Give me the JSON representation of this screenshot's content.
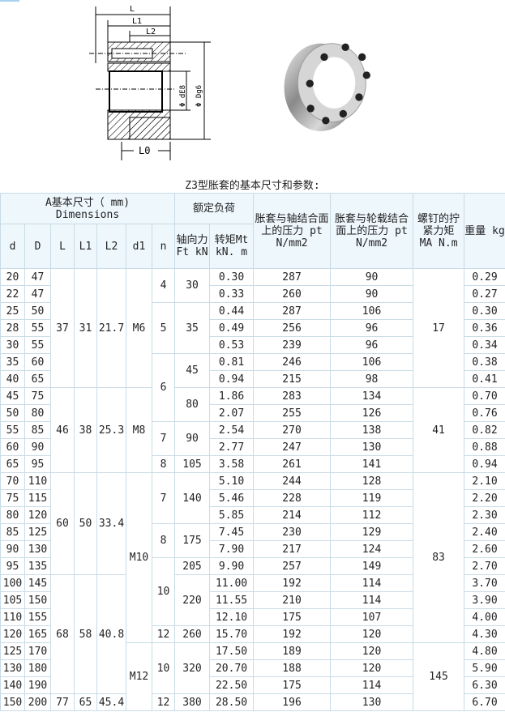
{
  "title": "Z3型胀套的基本尺寸和参数:",
  "drawing_labels": {
    "L": "L",
    "L1": "L1",
    "L2": "L2",
    "L0": "L0",
    "dE8": "Φ dE8",
    "Dg6": "Φ Dg6"
  },
  "header": {
    "group_dimensions": "A基本尺寸（ mm)",
    "group_dimensions_en": "Dimensions",
    "group_load": "额定负荷",
    "pt_shaft": "胀套与轴结合面上的压力 pt N/mm2",
    "pt_hub": "胀套与轮载结合面上的压力 pt N/mm2",
    "ma": "螺钉的拧紧力矩 MA N.m",
    "weight": "重量 kg",
    "d": "d",
    "D": "D",
    "L": "L",
    "L1": "L1",
    "L2": "L2",
    "d1": "d1",
    "n": "n",
    "ft": "轴向力Ft kN",
    "mt": "转矩Mt kN. m"
  },
  "rows": [
    {
      "d": "20",
      "D": "47",
      "mt": "0.30",
      "pt_shaft": "287",
      "pt_hub": "90",
      "kg": "0.29"
    },
    {
      "d": "22",
      "D": "47",
      "mt": "0.33",
      "pt_shaft": "260",
      "pt_hub": "90",
      "kg": "0.27"
    },
    {
      "d": "25",
      "D": "50",
      "mt": "0.44",
      "pt_shaft": "287",
      "pt_hub": "106",
      "kg": "0.30"
    },
    {
      "d": "28",
      "D": "55",
      "mt": "0.49",
      "pt_shaft": "256",
      "pt_hub": "96",
      "kg": "0.36"
    },
    {
      "d": "30",
      "D": "55",
      "mt": "0.53",
      "pt_shaft": "239",
      "pt_hub": "96",
      "kg": "0.34"
    },
    {
      "d": "35",
      "D": "60",
      "mt": "0.81",
      "pt_shaft": "246",
      "pt_hub": "106",
      "kg": "0.38"
    },
    {
      "d": "40",
      "D": "65",
      "mt": "0.94",
      "pt_shaft": "215",
      "pt_hub": "98",
      "kg": "0.41"
    },
    {
      "d": "45",
      "D": "75",
      "mt": "1.86",
      "pt_shaft": "283",
      "pt_hub": "134",
      "kg": "0.70"
    },
    {
      "d": "50",
      "D": "80",
      "mt": "2.07",
      "pt_shaft": "255",
      "pt_hub": "126",
      "kg": "0.76"
    },
    {
      "d": "55",
      "D": "85",
      "mt": "2.54",
      "pt_shaft": "270",
      "pt_hub": "138",
      "kg": "0.82"
    },
    {
      "d": "60",
      "D": "90",
      "mt": "2.77",
      "pt_shaft": "247",
      "pt_hub": "130",
      "kg": "0.88"
    },
    {
      "d": "65",
      "D": "95",
      "mt": "3.58",
      "pt_shaft": "261",
      "pt_hub": "141",
      "kg": "0.94"
    },
    {
      "d": "70",
      "D": "110",
      "mt": "5.10",
      "pt_shaft": "244",
      "pt_hub": "128",
      "kg": "2.10"
    },
    {
      "d": "75",
      "D": "115",
      "mt": "5.46",
      "pt_shaft": "228",
      "pt_hub": "119",
      "kg": "2.20"
    },
    {
      "d": "80",
      "D": "120",
      "mt": "5.85",
      "pt_shaft": "214",
      "pt_hub": "112",
      "kg": "2.30"
    },
    {
      "d": "85",
      "D": "125",
      "mt": "7.45",
      "pt_shaft": "230",
      "pt_hub": "129",
      "kg": "2.40"
    },
    {
      "d": "90",
      "D": "130",
      "mt": "7.90",
      "pt_shaft": "217",
      "pt_hub": "124",
      "kg": "2.60"
    },
    {
      "d": "95",
      "D": "135",
      "mt": "9.90",
      "pt_shaft": "257",
      "pt_hub": "149",
      "kg": "2.70"
    },
    {
      "d": "100",
      "D": "145",
      "mt": "11.00",
      "pt_shaft": "192",
      "pt_hub": "114",
      "kg": "3.70"
    },
    {
      "d": "105",
      "D": "150",
      "mt": "11.55",
      "pt_shaft": "210",
      "pt_hub": "114",
      "kg": "3.90"
    },
    {
      "d": "110",
      "D": "155",
      "mt": "12.10",
      "pt_shaft": "175",
      "pt_hub": "107",
      "kg": "4.00"
    },
    {
      "d": "120",
      "D": "165",
      "mt": "15.70",
      "pt_shaft": "192",
      "pt_hub": "120",
      "kg": "4.30"
    },
    {
      "d": "125",
      "D": "170",
      "mt": "17.50",
      "pt_shaft": "189",
      "pt_hub": "120",
      "kg": "4.80"
    },
    {
      "d": "130",
      "D": "180",
      "mt": "20.70",
      "pt_shaft": "188",
      "pt_hub": "120",
      "kg": "5.90"
    },
    {
      "d": "140",
      "D": "190",
      "mt": "22.50",
      "pt_shaft": "175",
      "pt_hub": "114",
      "kg": "6.30"
    },
    {
      "d": "150",
      "D": "200",
      "mt": "28.50",
      "pt_shaft": "196",
      "pt_hub": "130",
      "kg": "6.70"
    }
  ],
  "merged": {
    "L": [
      {
        "value": "37",
        "rows": 7
      },
      {
        "value": "46",
        "rows": 5
      },
      {
        "value": "60",
        "rows": 6
      },
      {
        "value": "68",
        "rows": 7
      },
      {
        "value": "77",
        "rows": 1
      }
    ],
    "L1": [
      {
        "value": "31",
        "rows": 7
      },
      {
        "value": "38",
        "rows": 5
      },
      {
        "value": "50",
        "rows": 6
      },
      {
        "value": "58",
        "rows": 7
      },
      {
        "value": "65",
        "rows": 1
      }
    ],
    "L2": [
      {
        "value": "21.7",
        "rows": 7
      },
      {
        "value": "25.3",
        "rows": 5
      },
      {
        "value": "33.4",
        "rows": 6
      },
      {
        "value": "40.8",
        "rows": 7
      },
      {
        "value": "45.4",
        "rows": 1
      }
    ],
    "d1": [
      {
        "value": "M6",
        "rows": 7
      },
      {
        "value": "M8",
        "rows": 5
      },
      {
        "value": "M10",
        "rows": 10
      },
      {
        "value": "M12",
        "rows": 4
      }
    ],
    "n": [
      {
        "value": "4",
        "rows": 2
      },
      {
        "value": "5",
        "rows": 3
      },
      {
        "value": "6",
        "rows": 4
      },
      {
        "value": "7",
        "rows": 2
      },
      {
        "value": "8",
        "rows": 1
      },
      {
        "value": "7",
        "rows": 3
      },
      {
        "value": "8",
        "rows": 2
      },
      {
        "value": "10",
        "rows": 4
      },
      {
        "value": "12",
        "rows": 1
      },
      {
        "value": "10",
        "rows": 3
      },
      {
        "value": "12",
        "rows": 1
      }
    ],
    "ft": [
      {
        "value": "30",
        "rows": 2
      },
      {
        "value": "35",
        "rows": 3
      },
      {
        "value": "45",
        "rows": 2
      },
      {
        "value": "80",
        "rows": 2
      },
      {
        "value": "90",
        "rows": 2
      },
      {
        "value": "105",
        "rows": 1
      },
      {
        "value": "140",
        "rows": 3
      },
      {
        "value": "175",
        "rows": 2
      },
      {
        "value": "205",
        "rows": 1
      },
      {
        "value": "220",
        "rows": 3
      },
      {
        "value": "260",
        "rows": 1
      },
      {
        "value": "320",
        "rows": 3
      },
      {
        "value": "380",
        "rows": 1
      }
    ],
    "ma": [
      {
        "value": "17",
        "rows": 7
      },
      {
        "value": "41",
        "rows": 5
      },
      {
        "value": "83",
        "rows": 10
      },
      {
        "value": "145",
        "rows": 4
      }
    ]
  }
}
